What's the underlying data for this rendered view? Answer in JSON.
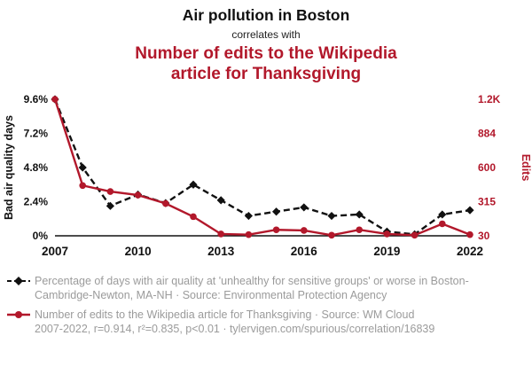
{
  "header": {
    "title": "Air pollution in Boston",
    "connector": "correlates with",
    "subtitle": "Number of edits to the Wikipedia article for Thanksgiving"
  },
  "colors": {
    "accent_red": "#b2182b",
    "series_black": "#111111",
    "footer_grey": "#9b9b9b"
  },
  "chart_data": {
    "type": "line",
    "title": "Air pollution in Boston correlates with Number of edits to the Wikipedia article for Thanksgiving",
    "x": [
      2007,
      2008,
      2009,
      2010,
      2011,
      2012,
      2013,
      2014,
      2015,
      2016,
      2017,
      2018,
      2019,
      2020,
      2021,
      2022
    ],
    "x_range": [
      2007,
      2022
    ],
    "x_ticks": [
      2007,
      2010,
      2013,
      2016,
      2019,
      2022
    ],
    "grid": "off",
    "legend_position": "bottom",
    "left_axis": {
      "label": "Bad air quality days",
      "color": "#111111",
      "range": [
        0,
        9.6
      ],
      "ticks": [
        {
          "value": 0,
          "label": "0%"
        },
        {
          "value": 2.4,
          "label": "2.4%"
        },
        {
          "value": 4.8,
          "label": "4.8%"
        },
        {
          "value": 7.2,
          "label": "7.2%"
        },
        {
          "value": 9.6,
          "label": "9.6%"
        }
      ]
    },
    "right_axis": {
      "label": "Edits",
      "color": "#b2182b",
      "range": [
        30,
        1170
      ],
      "ticks": [
        {
          "value": 30,
          "label": "30"
        },
        {
          "value": 315,
          "label": "315"
        },
        {
          "value": 600,
          "label": "600"
        },
        {
          "value": 884,
          "label": "884"
        },
        {
          "value": 1170,
          "label": "1.2K"
        }
      ]
    },
    "series": [
      {
        "name": "Percentage of days with air quality at 'unhealthy for sensitive groups' or worse in Boston-Cambridge-Newton, MA-NH",
        "axis": "left",
        "color": "#111111",
        "style": "dashed-diamond",
        "values": [
          9.6,
          4.8,
          2.1,
          2.9,
          2.3,
          3.6,
          2.5,
          1.4,
          1.7,
          2.0,
          1.4,
          1.5,
          0.3,
          0.1,
          1.5,
          1.8
        ]
      },
      {
        "name": "Number of edits to the Wikipedia article for Thanksgiving",
        "axis": "right",
        "color": "#b2182b",
        "style": "solid-circle",
        "values": [
          1170,
          450,
          400,
          370,
          300,
          190,
          45,
          40,
          80,
          75,
          35,
          80,
          45,
          35,
          130,
          40
        ]
      }
    ]
  },
  "footer": {
    "legend1": "Percentage of days with air quality at 'unhealthy for sensitive groups' or worse in Boston-Cambridge-Newton, MA-NH · Source: Environmental Protection Agency",
    "legend2": "Number of edits to the Wikipedia article for Thanksgiving · Source: WM Cloud",
    "stats": "2007-2022, r=0.914, r²=0.835, p<0.01 · tylervigen.com/spurious/correlation/16839"
  }
}
